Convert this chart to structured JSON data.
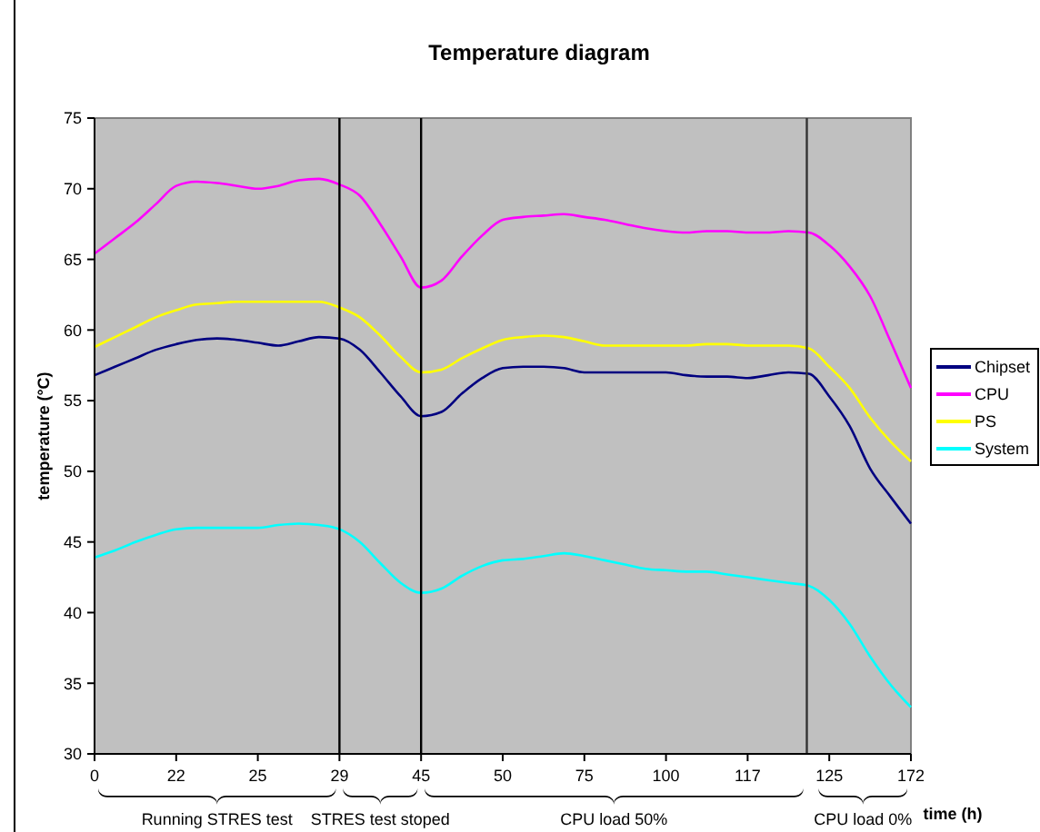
{
  "chart_data": {
    "type": "line",
    "title": "Temperature diagram",
    "xlabel": "time (h)",
    "ylabel": "temperature (°C)",
    "categories": [
      "0",
      null,
      null,
      null,
      "22",
      null,
      null,
      null,
      "25",
      null,
      null,
      null,
      "29",
      null,
      null,
      null,
      "45",
      null,
      null,
      null,
      "50",
      null,
      null,
      null,
      "75",
      null,
      null,
      null,
      "100",
      null,
      null,
      null,
      "117",
      null,
      null,
      null,
      "125",
      null,
      null,
      null,
      "172"
    ],
    "series": [
      {
        "name": "Chipset",
        "color": "#000080",
        "values": [
          56.8,
          57.4,
          58.0,
          58.6,
          59.0,
          59.3,
          59.4,
          59.3,
          59.1,
          58.9,
          59.2,
          59.5,
          59.4,
          58.6,
          57.0,
          55.3,
          53.9,
          54.2,
          55.5,
          56.6,
          57.3,
          57.4,
          57.4,
          57.3,
          57.0,
          57.0,
          57.0,
          57.0,
          57.0,
          56.8,
          56.7,
          56.7,
          56.6,
          56.8,
          57.0,
          56.9,
          55.3,
          53.2,
          50.2,
          48.2,
          46.3
        ]
      },
      {
        "name": "CPU",
        "color": "#ff00ff",
        "values": [
          65.4,
          66.5,
          67.6,
          68.9,
          70.2,
          70.5,
          70.4,
          70.2,
          70.0,
          70.2,
          70.6,
          70.7,
          70.3,
          69.5,
          67.5,
          65.2,
          63.0,
          63.5,
          65.2,
          66.7,
          67.8,
          68.0,
          68.1,
          68.2,
          68.0,
          67.8,
          67.5,
          67.2,
          67.0,
          66.9,
          67.0,
          67.0,
          66.9,
          66.9,
          67.0,
          66.9,
          66.0,
          64.5,
          62.4,
          59.2,
          55.9
        ]
      },
      {
        "name": "PS",
        "color": "#ffff00",
        "values": [
          58.8,
          59.5,
          60.2,
          60.9,
          61.4,
          61.8,
          61.9,
          62.0,
          62.0,
          62.0,
          62.0,
          62.0,
          61.6,
          60.9,
          59.6,
          58.1,
          57.0,
          57.2,
          58.0,
          58.7,
          59.3,
          59.5,
          59.6,
          59.5,
          59.2,
          58.9,
          58.9,
          58.9,
          58.9,
          58.9,
          59.0,
          59.0,
          58.9,
          58.9,
          58.9,
          58.7,
          57.4,
          55.9,
          53.8,
          52.1,
          50.7
        ]
      },
      {
        "name": "System",
        "color": "#00ffff",
        "values": [
          43.9,
          44.4,
          45.0,
          45.5,
          45.9,
          46.0,
          46.0,
          46.0,
          46.0,
          46.2,
          46.3,
          46.2,
          45.9,
          45.0,
          43.5,
          42.1,
          41.4,
          41.7,
          42.6,
          43.3,
          43.7,
          43.8,
          44.0,
          44.2,
          44.0,
          43.7,
          43.4,
          43.1,
          43.0,
          42.9,
          42.9,
          42.7,
          42.5,
          42.3,
          42.1,
          41.9,
          40.9,
          39.2,
          36.9,
          34.9,
          33.3
        ]
      }
    ],
    "ylim": [
      30,
      75
    ],
    "yticks": [
      30,
      35,
      40,
      45,
      50,
      55,
      60,
      65,
      70,
      75
    ],
    "grid": false,
    "legend": "right",
    "marker": "none",
    "line_style": "solid",
    "ref_lines": [
      {
        "axis": "x",
        "value": "29",
        "color": "#000000"
      },
      {
        "axis": "x",
        "value": "45",
        "color": "#000000"
      }
    ],
    "annotations": [
      "Running STRES test",
      "STRES test stoped",
      "CPU load 50%",
      "CPU load 0%"
    ]
  }
}
